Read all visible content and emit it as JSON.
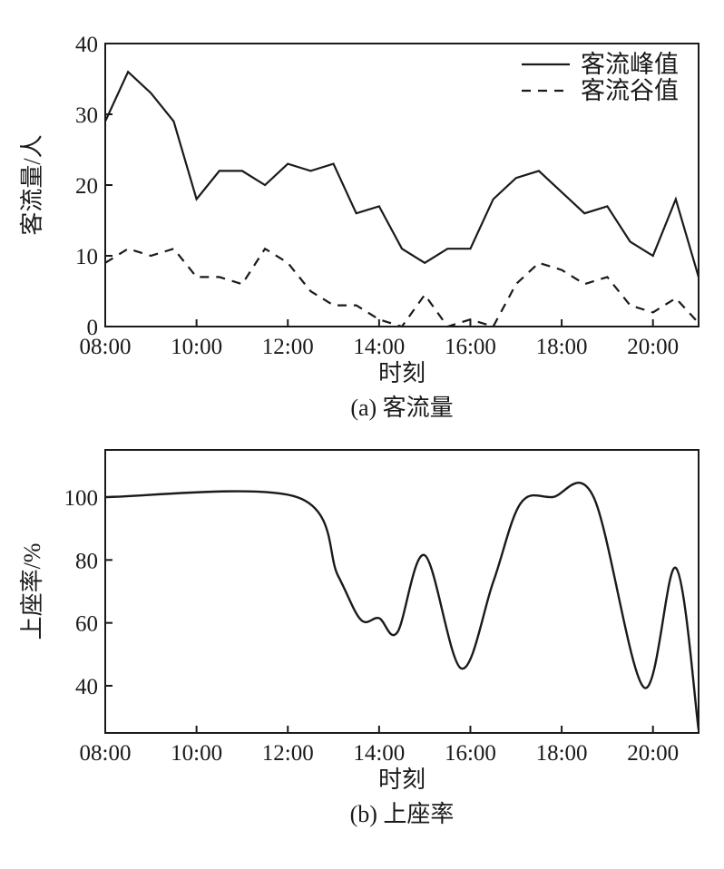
{
  "chart_data": [
    {
      "id": "a",
      "type": "line",
      "caption": "(a) 客流量",
      "xlabel": "时刻",
      "ylabel": "客流量/人",
      "xlim": [
        8,
        21
      ],
      "ylim": [
        0,
        40
      ],
      "xticks": [
        8,
        10,
        12,
        14,
        16,
        18,
        20
      ],
      "xtick_labels": [
        "08:00",
        "10:00",
        "12:00",
        "14:00",
        "16:00",
        "18:00",
        "20:00"
      ],
      "yticks": [
        0,
        10,
        20,
        30,
        40
      ],
      "ytick_labels": [
        "0",
        "10",
        "20",
        "30",
        "40"
      ],
      "legend_position": "top-right",
      "grid": false,
      "series": [
        {
          "name": "客流峰值",
          "style": "solid",
          "x": [
            8,
            8.5,
            9,
            9.5,
            10,
            10.5,
            11,
            11.5,
            12,
            12.5,
            13,
            13.5,
            14,
            14.5,
            15,
            15.5,
            16,
            16.5,
            17,
            17.5,
            18,
            18.5,
            19,
            19.5,
            20,
            20.5,
            21
          ],
          "y": [
            29,
            36,
            33,
            29,
            18,
            22,
            22,
            20,
            23,
            22,
            23,
            16,
            17,
            11,
            9,
            11,
            11,
            18,
            21,
            22,
            19,
            16,
            17,
            12,
            10,
            18,
            7
          ]
        },
        {
          "name": "客流谷值",
          "style": "dashed",
          "x": [
            8,
            8.5,
            9,
            9.5,
            10,
            10.5,
            11,
            11.5,
            12,
            12.5,
            13,
            13.5,
            14,
            14.5,
            15,
            15.5,
            16,
            16.5,
            17,
            17.5,
            18,
            18.5,
            19,
            19.5,
            20,
            20.5,
            21
          ],
          "y": [
            9,
            11,
            10,
            11,
            7,
            7,
            6,
            11,
            9,
            5,
            3,
            3,
            1,
            0,
            4.5,
            0,
            1,
            0,
            6,
            9,
            8,
            6,
            7,
            3,
            2,
            4,
            0.5
          ]
        }
      ]
    },
    {
      "id": "b",
      "type": "line",
      "caption": "(b) 上座率",
      "xlabel": "时刻",
      "ylabel": "上座率/%",
      "xlim": [
        8,
        21
      ],
      "ylim": [
        25,
        115
      ],
      "xticks": [
        8,
        10,
        12,
        14,
        16,
        18,
        20
      ],
      "xtick_labels": [
        "08:00",
        "10:00",
        "12:00",
        "14:00",
        "16:00",
        "18:00",
        "20:00"
      ],
      "yticks": [
        40,
        60,
        80,
        100
      ],
      "ytick_labels": [
        "40",
        "60",
        "80",
        "100"
      ],
      "grid": false,
      "series": [
        {
          "style": "solid",
          "smooth": true,
          "x": [
            8,
            12.2,
            13.1,
            13.6,
            14,
            14.4,
            15,
            15.8,
            16.5,
            17.1,
            17.8,
            18.7,
            19.8,
            20.5,
            21
          ],
          "y": [
            100,
            100,
            75,
            61,
            61.5,
            57,
            81.5,
            45.5,
            73,
            98,
            100,
            100,
            39.5,
            77.5,
            26
          ]
        }
      ]
    }
  ]
}
